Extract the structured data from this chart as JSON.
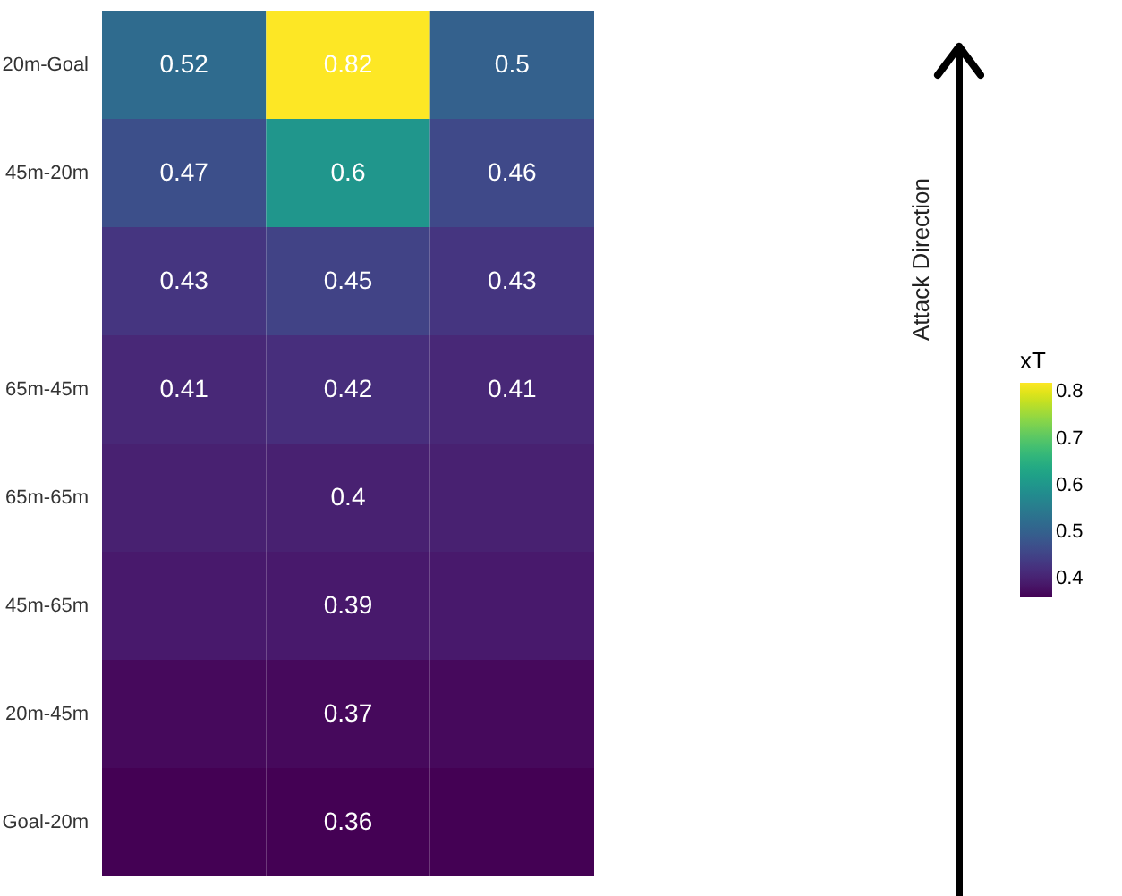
{
  "chart_data": {
    "type": "heatmap",
    "categories": [
      null,
      null,
      null
    ],
    "y_categories": [
      "20m-Goal",
      "45m-20m",
      null,
      "65m-45m",
      "65m-65m",
      "45m-65m",
      "20m-45m",
      "Goal-20m"
    ],
    "cells": [
      [
        0.52,
        0.82,
        0.5
      ],
      [
        0.47,
        0.6,
        0.46
      ],
      [
        0.43,
        0.45,
        0.43
      ],
      [
        0.41,
        0.42,
        0.41
      ],
      [
        0.4,
        0.4,
        0.4
      ],
      [
        0.39,
        0.39,
        0.39
      ],
      [
        0.37,
        0.37,
        0.37
      ],
      [
        0.36,
        0.36,
        0.36
      ]
    ],
    "cell_labels": [
      [
        "0.52",
        "0.82",
        "0.5"
      ],
      [
        "0.47",
        "0.6",
        "0.46"
      ],
      [
        "0.43",
        "0.45",
        "0.43"
      ],
      [
        "0.41",
        "0.42",
        "0.41"
      ],
      [
        null,
        "0.4",
        null
      ],
      [
        null,
        "0.39",
        null
      ],
      [
        null,
        "0.37",
        null
      ],
      [
        null,
        "0.36",
        null
      ]
    ],
    "data_labels": true,
    "clabel": "xT",
    "clim": [
      0.36,
      0.82
    ],
    "cticks": [
      0.4,
      0.5,
      0.6,
      0.7,
      0.8
    ],
    "annotations": [
      "Attack Direction"
    ]
  }
}
